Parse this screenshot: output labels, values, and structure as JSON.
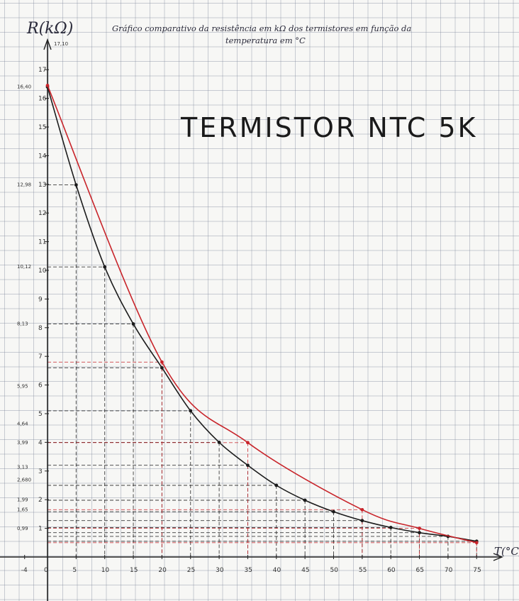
{
  "chart_data": {
    "type": "line",
    "title": "Gráfico comparativo da resistência em kΩ dos termistores em função da temperatura em °C",
    "subtitle": "TERMISTOR NTC 5K",
    "ylabel": "R(kΩ)",
    "xlabel": "T(°C)",
    "xlim": [
      -4,
      80
    ],
    "ylim": [
      0,
      17.5
    ],
    "x_ticks": [
      "-4",
      "0",
      "5",
      "10",
      "15",
      "20",
      "25",
      "30",
      "35",
      "40",
      "45",
      "50",
      "55",
      "60",
      "65",
      "70",
      "75"
    ],
    "y_ticks": [
      "1",
      "2",
      "3",
      "4",
      "5",
      "6",
      "7",
      "8",
      "9",
      "10",
      "11",
      "12",
      "13",
      "14",
      "15",
      "16",
      "17"
    ],
    "y_value_labels": [
      "16,40",
      "12,98",
      "10,12",
      "8,13",
      "5,95",
      "4,64",
      "3,99",
      "3,13",
      "2,680",
      "1,99",
      "1,65",
      "0,99"
    ],
    "y_top_note": "17,10",
    "series": [
      {
        "color": "#1c1c1c",
        "x": [
          0,
          5,
          10,
          15,
          20,
          25,
          30,
          35,
          40,
          45,
          50,
          55,
          60,
          65,
          70,
          75
        ],
        "y": [
          16.4,
          12.98,
          10.12,
          8.13,
          6.6,
          5.1,
          4.0,
          3.2,
          2.5,
          1.98,
          1.58,
          1.27,
          1.03,
          0.85,
          0.72,
          0.55
        ]
      },
      {
        "color": "#c8242a",
        "x": [
          0,
          20,
          35,
          55,
          65,
          75
        ],
        "y": [
          16.45,
          6.8,
          3.99,
          1.65,
          1.0,
          0.5
        ]
      }
    ]
  }
}
